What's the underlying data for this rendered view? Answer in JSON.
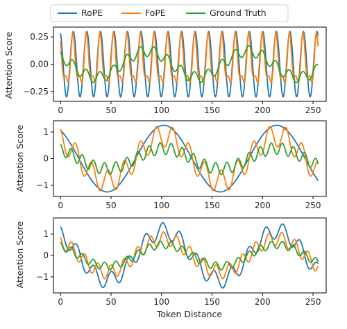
{
  "legend": {
    "entries": [
      {
        "label": "RoPE",
        "color": "#1f77b4"
      },
      {
        "label": "FoPE",
        "color": "#ff7f0e"
      },
      {
        "label": "Ground Truth",
        "color": "#2ca02c"
      }
    ]
  },
  "chart_data": [
    {
      "type": "line",
      "ylabel": "Attention Score",
      "xlabel": "",
      "xlim": [
        -7,
        263
      ],
      "ylim": [
        -0.34,
        0.34
      ],
      "xticks": [
        0,
        50,
        100,
        150,
        200,
        250
      ],
      "yticks": [
        0.25,
        0.0,
        -0.25
      ],
      "ytick_labels": [
        "0.25",
        "0.00",
        "−0.25"
      ],
      "x": {
        "start": 0,
        "end": 255
      },
      "series": [
        {
          "name": "RoPE",
          "color": "#1f77b4",
          "components": [
            {
              "amp": 0.3,
              "period": 13.4,
              "phase": 0.35
            }
          ]
        },
        {
          "name": "FoPE",
          "color": "#ff7f0e",
          "components": [
            {
              "amp": 0.2,
              "period": 13.4,
              "phase": 0.45
            },
            {
              "amp": 0.09,
              "period": 6.7,
              "phase": 1.2
            }
          ]
        },
        {
          "name": "Ground Truth",
          "color": "#2ca02c",
          "components": [
            {
              "amp": 0.12,
              "period": 100,
              "phase": 0.9
            },
            {
              "amp": 0.05,
              "period": 13.4,
              "phase": 0.6
            }
          ]
        }
      ]
    },
    {
      "type": "line",
      "ylabel": "Attention Score",
      "xlabel": "",
      "xlim": [
        -7,
        263
      ],
      "ylim": [
        -1.42,
        1.42
      ],
      "xticks": [
        0,
        50,
        100,
        150,
        200,
        250
      ],
      "yticks": [
        1,
        0,
        -1
      ],
      "ytick_labels": [
        "1",
        "0",
        "−1"
      ],
      "x": {
        "start": 0,
        "end": 255
      },
      "series": [
        {
          "name": "RoPE",
          "color": "#1f77b4",
          "components": [
            {
              "amp": 1.25,
              "period": 112,
              "phase": 0.55
            }
          ]
        },
        {
          "name": "FoPE",
          "color": "#ff7f0e",
          "components": [
            {
              "amp": 0.85,
              "period": 112,
              "phase": 0.55
            },
            {
              "amp": 0.42,
              "period": 16,
              "phase": 0.4
            }
          ]
        },
        {
          "name": "Ground Truth",
          "color": "#2ca02c",
          "components": [
            {
              "amp": 0.38,
              "period": 112,
              "phase": 0.55
            },
            {
              "amp": 0.22,
              "period": 11,
              "phase": 0.2
            }
          ]
        }
      ]
    },
    {
      "type": "line",
      "ylabel": "Attention Score",
      "xlabel": "Token Distance",
      "xlim": [
        -7,
        263
      ],
      "ylim": [
        -1.75,
        1.75
      ],
      "xticks": [
        0,
        50,
        100,
        150,
        200,
        250
      ],
      "yticks": [
        1,
        0,
        -1
      ],
      "ytick_labels": [
        "1",
        "0",
        "−1"
      ],
      "x": {
        "start": 0,
        "end": 255
      },
      "series": [
        {
          "name": "RoPE",
          "color": "#1f77b4",
          "components": [
            {
              "amp": 1.15,
              "period": 112,
              "phase": 0.55
            },
            {
              "amp": 0.38,
              "period": 17,
              "phase": 0.3
            }
          ]
        },
        {
          "name": "FoPE",
          "color": "#ff7f0e",
          "components": [
            {
              "amp": 0.78,
              "period": 112,
              "phase": 0.55
            },
            {
              "amp": 0.32,
              "period": 13,
              "phase": 0.9
            }
          ]
        },
        {
          "name": "Ground Truth",
          "color": "#2ca02c",
          "components": [
            {
              "amp": 0.5,
              "period": 112,
              "phase": 0.55
            },
            {
              "amp": 0.18,
              "period": 11,
              "phase": 0.2
            }
          ]
        }
      ]
    }
  ]
}
